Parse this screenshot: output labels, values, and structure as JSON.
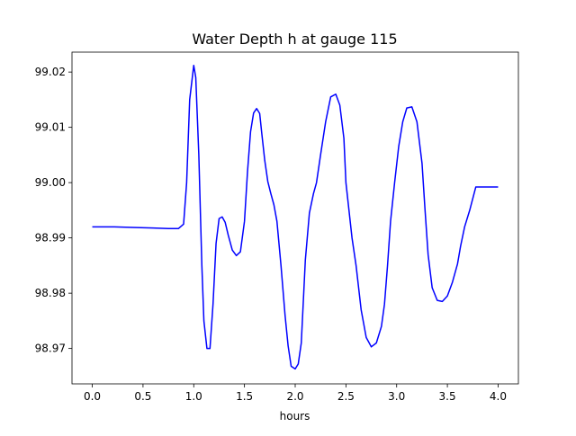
{
  "chart_data": {
    "type": "line",
    "title": "Water Depth h at gauge 115",
    "xlabel": "hours",
    "ylabel": "",
    "xlim": [
      -0.2,
      4.2
    ],
    "ylim": [
      98.9636,
      99.0236
    ],
    "x_ticks": [
      0.0,
      0.5,
      1.0,
      1.5,
      2.0,
      2.5,
      3.0,
      3.5,
      4.0
    ],
    "x_tick_labels": [
      "0.0",
      "0.5",
      "1.0",
      "1.5",
      "2.0",
      "2.5",
      "3.0",
      "3.5",
      "4.0"
    ],
    "y_ticks": [
      98.97,
      98.98,
      98.99,
      99.0,
      99.01,
      99.02
    ],
    "y_tick_labels": [
      "98.97",
      "98.98",
      "98.99",
      "99.00",
      "99.01",
      "99.02"
    ],
    "grid": false,
    "legend": "none",
    "series": [
      {
        "color": "#0000ff",
        "x": [
          0.0,
          0.2,
          0.4,
          0.6,
          0.75,
          0.85,
          0.9,
          0.93,
          0.96,
          1.0,
          1.02,
          1.05,
          1.08,
          1.1,
          1.13,
          1.16,
          1.19,
          1.22,
          1.25,
          1.28,
          1.31,
          1.34,
          1.38,
          1.42,
          1.46,
          1.5,
          1.53,
          1.56,
          1.59,
          1.62,
          1.65,
          1.67,
          1.7,
          1.73,
          1.76,
          1.79,
          1.82,
          1.86,
          1.9,
          1.93,
          1.96,
          2.0,
          2.03,
          2.06,
          2.08,
          2.1,
          2.14,
          2.18,
          2.21,
          2.25,
          2.3,
          2.35,
          2.4,
          2.44,
          2.48,
          2.5,
          2.53,
          2.56,
          2.6,
          2.65,
          2.7,
          2.75,
          2.8,
          2.85,
          2.88,
          2.91,
          2.94,
          2.98,
          3.02,
          3.06,
          3.1,
          3.15,
          3.2,
          3.25,
          3.28,
          3.31,
          3.35,
          3.4,
          3.45,
          3.5,
          3.55,
          3.6,
          3.63,
          3.67,
          3.72,
          3.78,
          3.85,
          3.9,
          3.95,
          4.0
        ],
        "y": [
          98.992,
          98.992,
          98.9919,
          98.9918,
          98.9917,
          98.9917,
          98.9925,
          99.0,
          99.015,
          99.0212,
          99.019,
          99.005,
          98.985,
          98.975,
          98.97,
          98.97,
          98.978,
          98.989,
          98.9935,
          98.9938,
          98.9928,
          98.9905,
          98.9878,
          98.9868,
          98.9875,
          98.993,
          99.002,
          99.0092,
          99.0126,
          99.0134,
          99.0125,
          99.009,
          99.004,
          99.0002,
          98.998,
          98.996,
          98.993,
          98.985,
          98.976,
          98.9705,
          98.9668,
          98.9663,
          98.9672,
          98.971,
          98.9785,
          98.986,
          98.9945,
          98.998,
          99.0,
          99.005,
          99.011,
          99.0155,
          99.016,
          99.014,
          99.008,
          99.0,
          98.995,
          98.99,
          98.985,
          98.977,
          98.972,
          98.9703,
          98.971,
          98.974,
          98.978,
          98.985,
          98.993,
          99.0,
          99.0065,
          99.011,
          99.0135,
          99.0137,
          99.011,
          99.0035,
          98.995,
          98.987,
          98.981,
          98.9787,
          98.9785,
          98.9795,
          98.982,
          98.9853,
          98.9885,
          98.992,
          98.995,
          98.9992,
          98.9992,
          98.9992,
          98.9992,
          98.9992
        ]
      }
    ]
  }
}
